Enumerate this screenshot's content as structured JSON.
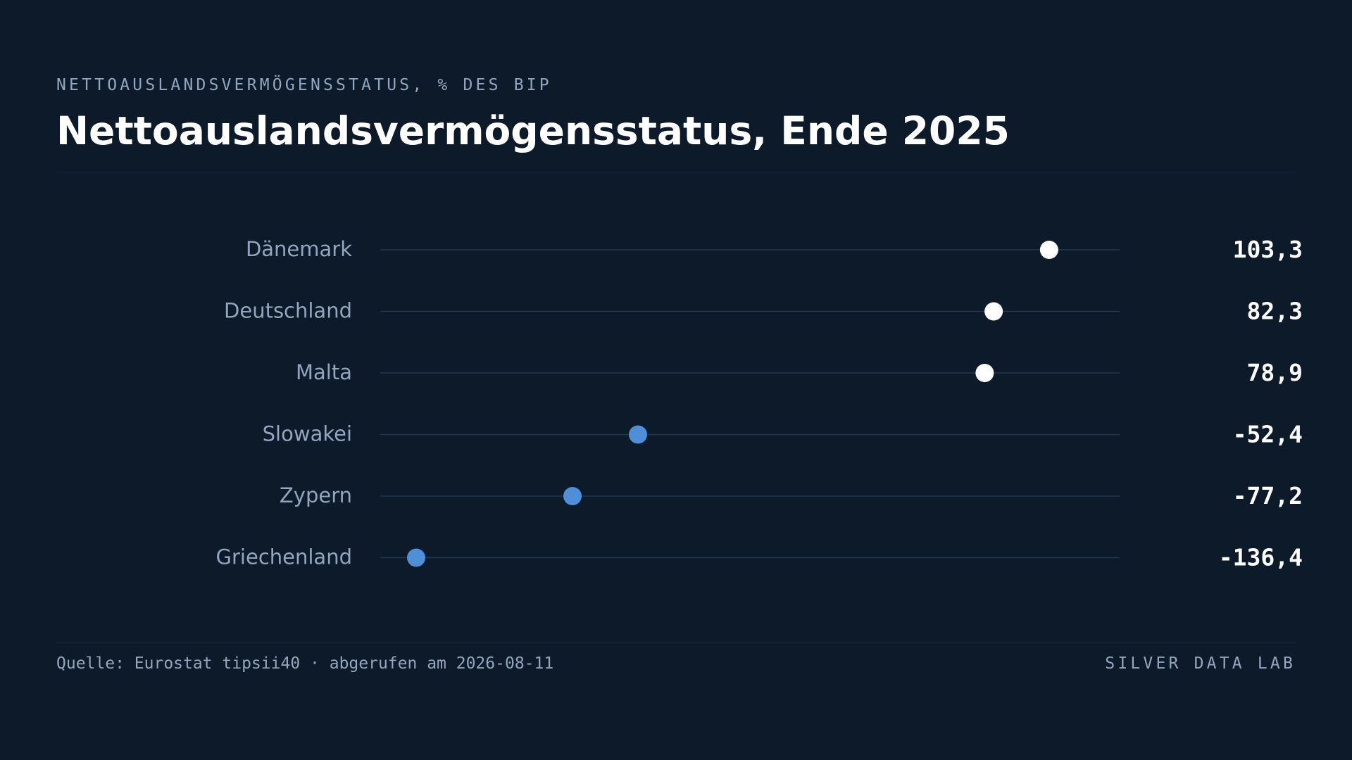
{
  "header": {
    "eyebrow": "NETTOAUSLANDSVERMÖGENSSTATUS, % DES BIP",
    "title": "Nettoauslandsvermögensstatus, Ende 2025"
  },
  "footer": {
    "source": "Quelle: Eurostat tipsii40 · abgerufen am 2026-08-11",
    "brand": "SILVER DATA LAB"
  },
  "colors": {
    "background": "#0d1a2a",
    "positive_dot": "#ffffff",
    "negative_dot": "#4f8fd8",
    "track": "#22364d",
    "label": "#93a6bf",
    "value": "#ffffff"
  },
  "chart_data": {
    "type": "dot",
    "title": "Nettoauslandsvermögensstatus, Ende 2025",
    "unit": "% des BIP",
    "xlim": [
      -150,
      130
    ],
    "grid": false,
    "categories": [
      "Dänemark",
      "Deutschland",
      "Malta",
      "Slowakei",
      "Zypern",
      "Griechenland"
    ],
    "values": [
      103.3,
      82.3,
      78.9,
      -52.4,
      -77.2,
      -136.4
    ],
    "value_labels": [
      "103,3",
      "82,3",
      "78,9",
      "-52,4",
      "-77,2",
      "-136,4"
    ]
  }
}
